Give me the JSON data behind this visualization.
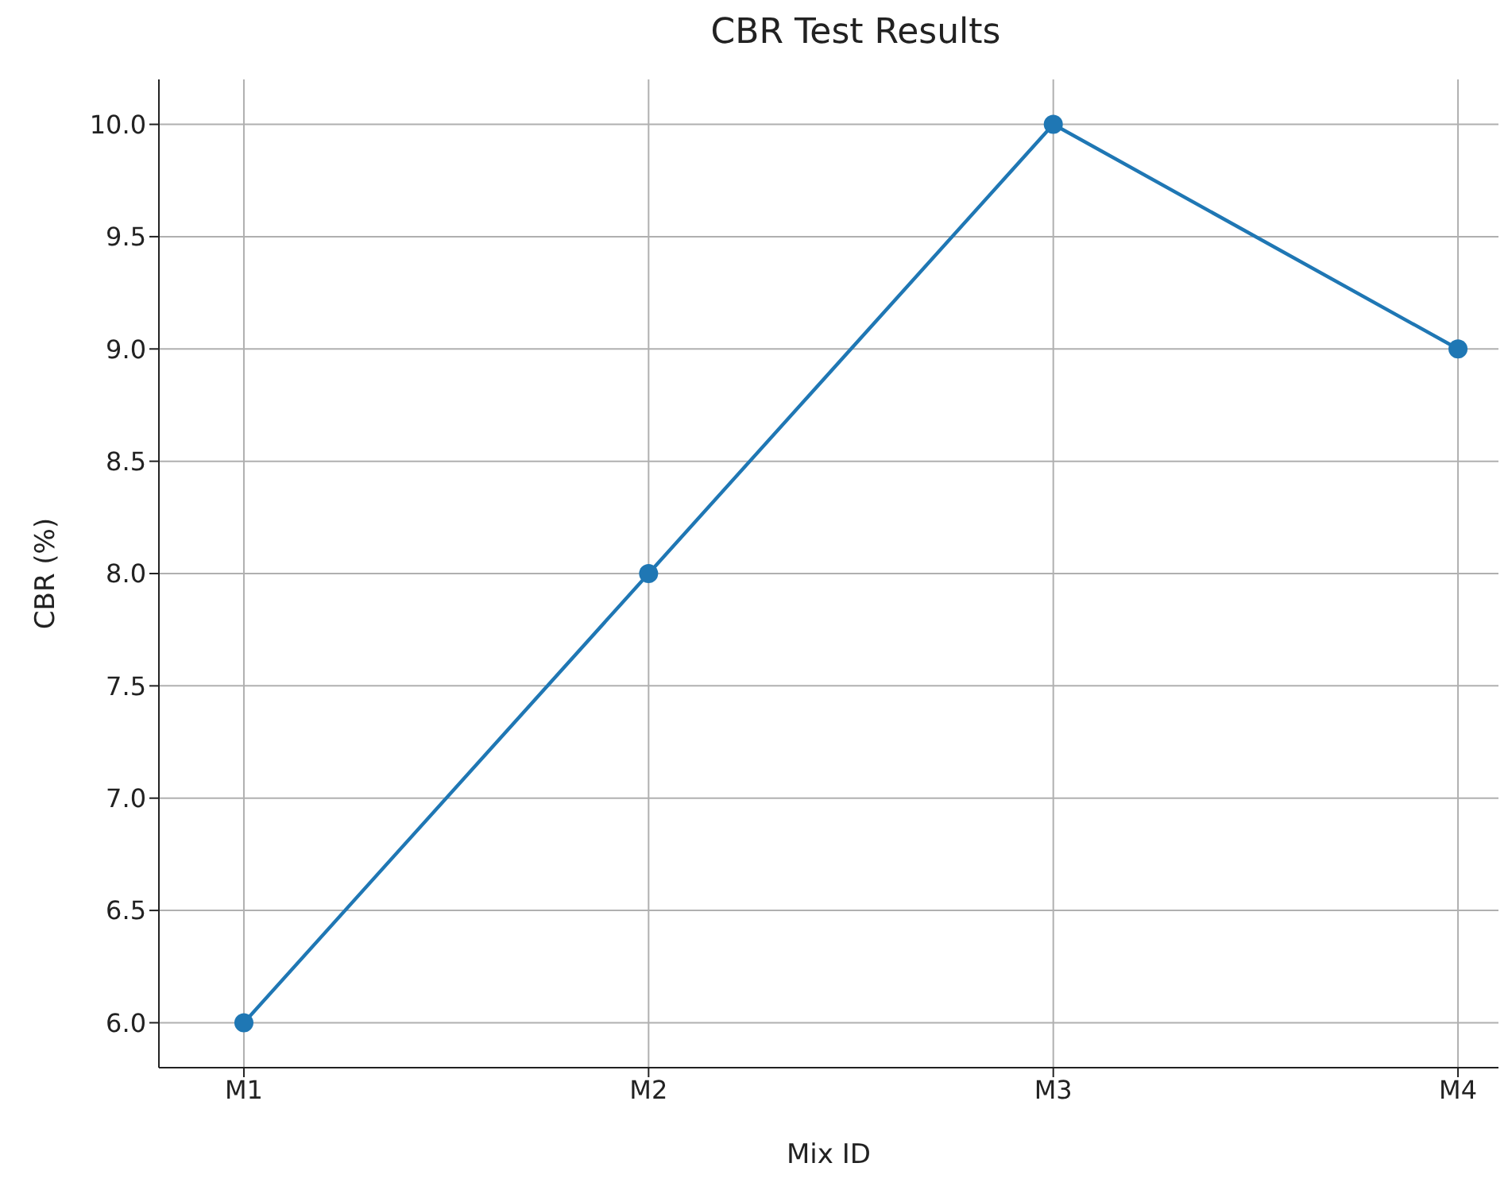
{
  "chart_data": {
    "type": "line",
    "title": "CBR Test Results",
    "xlabel": "Mix ID",
    "ylabel": "CBR (%)",
    "categories": [
      "M1",
      "M2",
      "M3",
      "M4"
    ],
    "series": [
      {
        "color": "#1f77b4",
        "values": [
          6.0,
          8.0,
          10.0,
          9.0
        ]
      }
    ],
    "ylim": [
      5.8,
      10.2
    ],
    "yticks": [
      {
        "value": 6,
        "label": "6.0"
      },
      {
        "value": 6.5,
        "label": "6.5"
      },
      {
        "value": 7,
        "label": "7.0"
      },
      {
        "value": 7.5,
        "label": "7.5"
      },
      {
        "value": 8,
        "label": "8.0"
      },
      {
        "value": 8.5,
        "label": "8.5"
      },
      {
        "value": 9,
        "label": "9.0"
      },
      {
        "value": 9.5,
        "label": "9.5"
      },
      {
        "value": 10,
        "label": "10.0"
      }
    ],
    "grid": true,
    "marker": "circle",
    "line_style": "solid"
  }
}
